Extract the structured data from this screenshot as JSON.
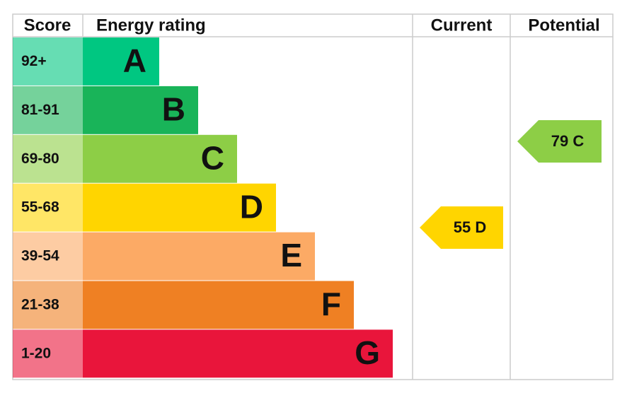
{
  "headers": [
    "Score",
    "Energy rating",
    "Current",
    "Potential"
  ],
  "bands": [
    {
      "score": "92+",
      "letter": "A",
      "color": "#00c781"
    },
    {
      "score": "81-91",
      "letter": "B",
      "color": "#19b459"
    },
    {
      "score": "69-80",
      "letter": "C",
      "color": "#8dce46"
    },
    {
      "score": "55-68",
      "letter": "D",
      "color": "#ffd500"
    },
    {
      "score": "39-54",
      "letter": "E",
      "color": "#fcaa65"
    },
    {
      "score": "21-38",
      "letter": "F",
      "color": "#ef8023"
    },
    {
      "score": "1-20",
      "letter": "G",
      "color": "#e9153b"
    }
  ],
  "current": "55 D",
  "potential": "79 C"
}
